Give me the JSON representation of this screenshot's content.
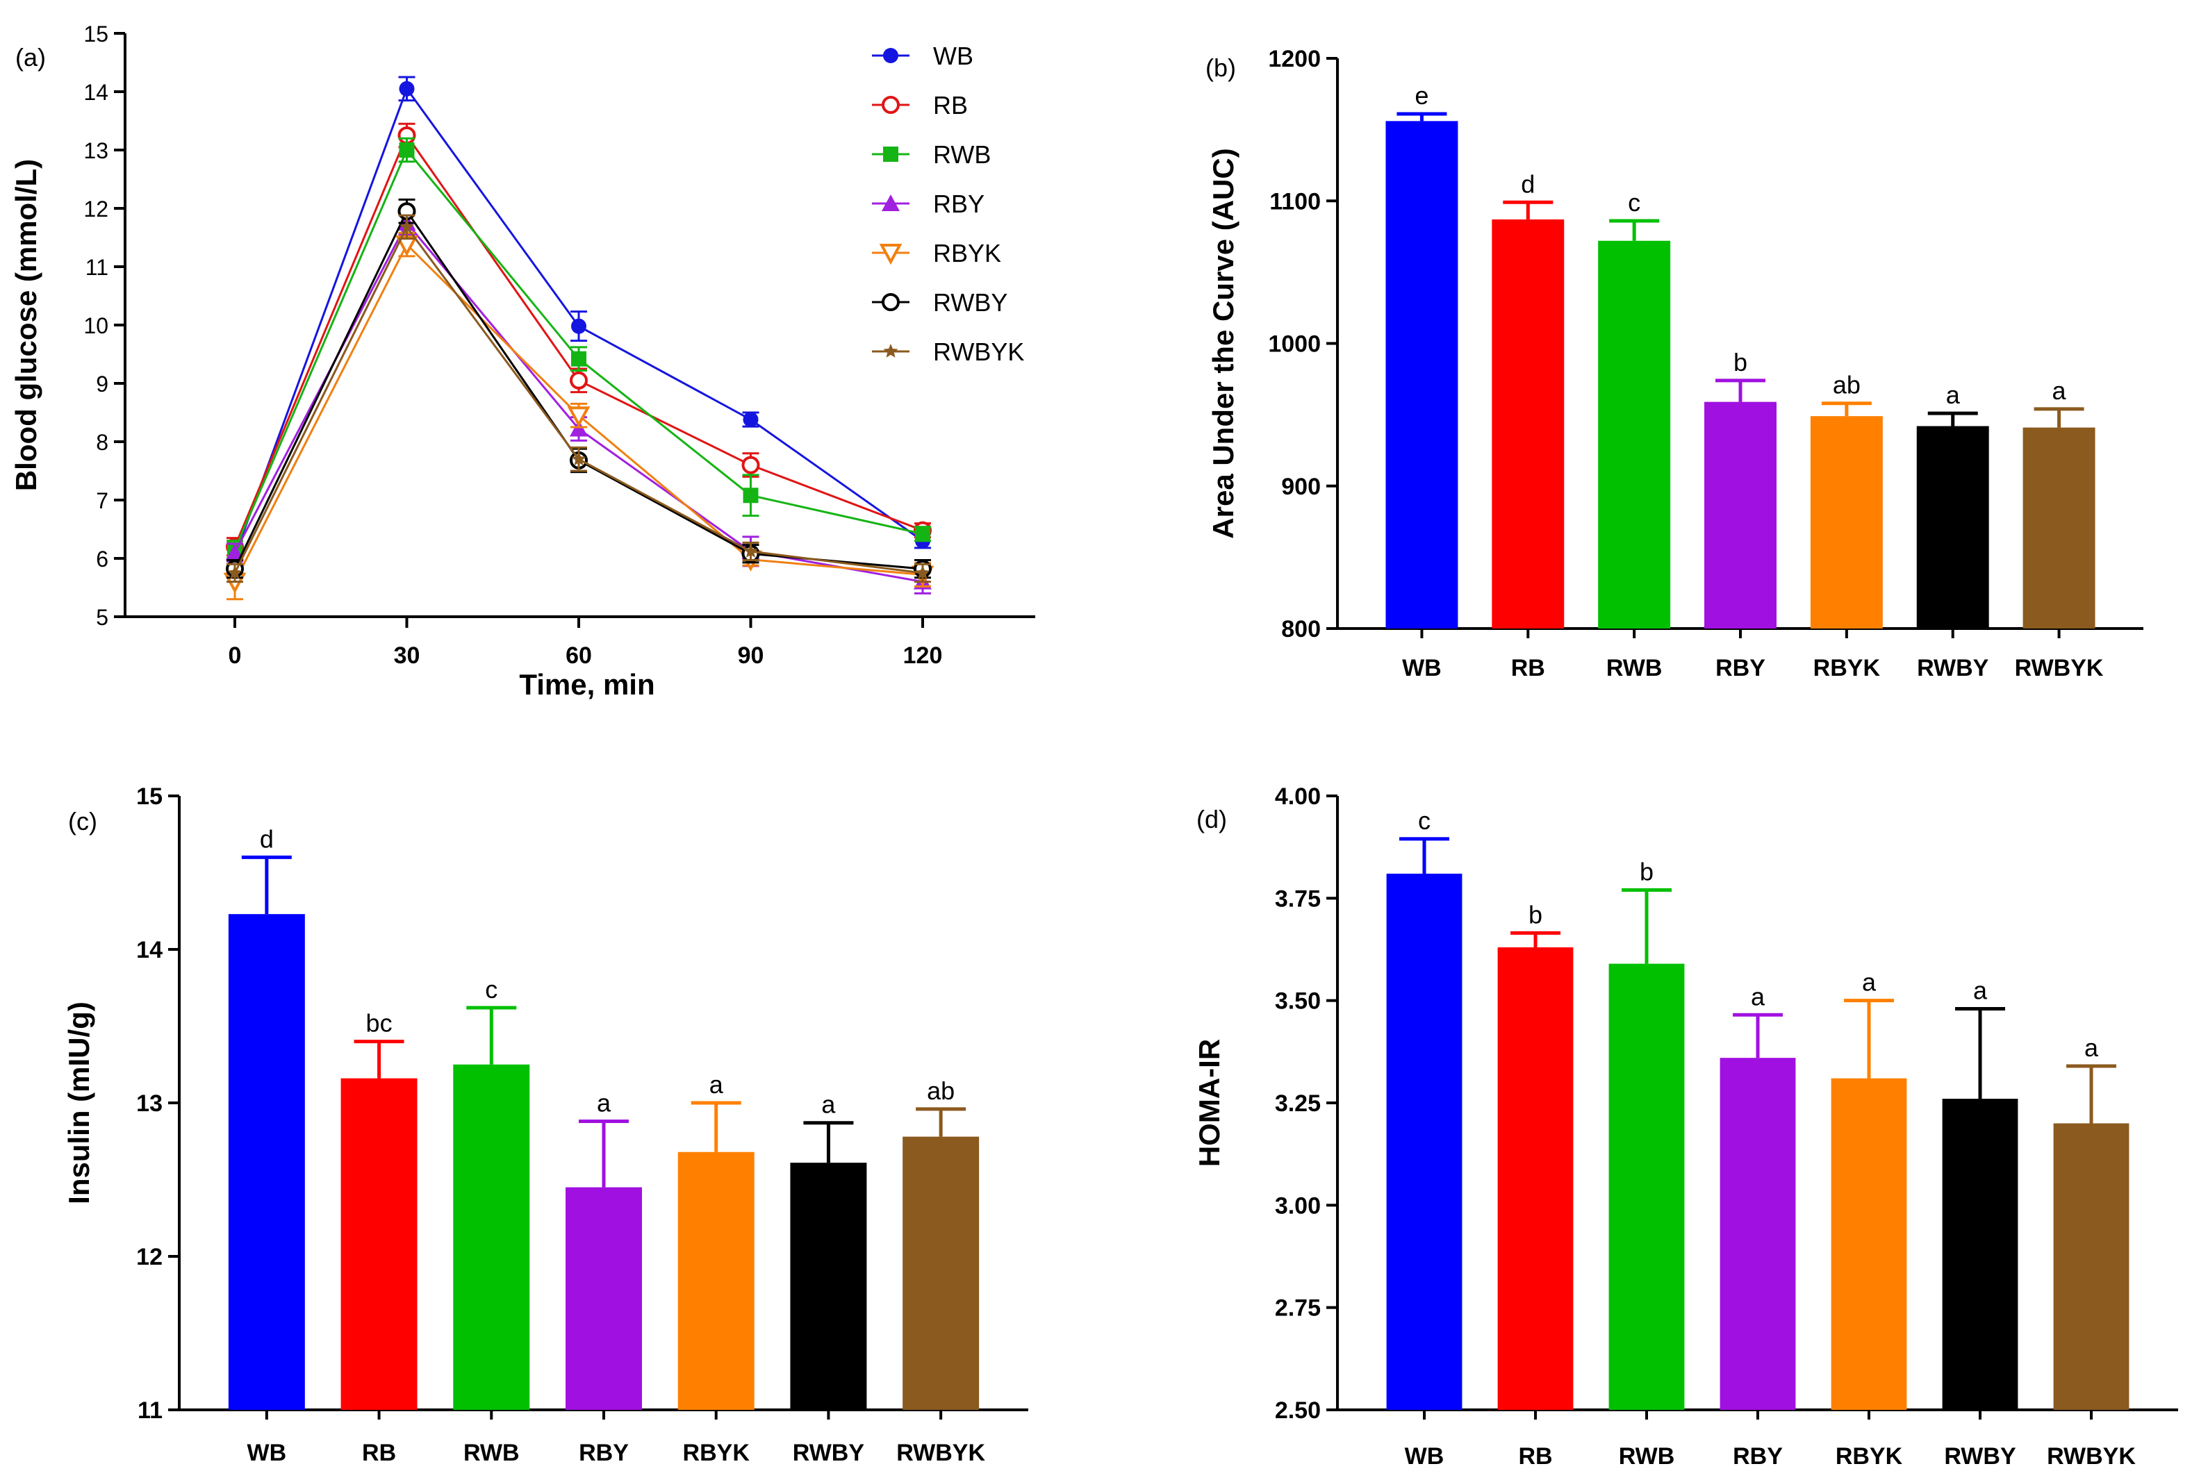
{
  "chart_data": [
    {
      "panel": "(a)",
      "type": "line",
      "xlabel": "Time, min",
      "ylabel": "Blood glucose (mmol/L)",
      "ylim": [
        5,
        15
      ],
      "yticks": [
        "5",
        "6",
        "7",
        "8",
        "9",
        "10",
        "11",
        "12",
        "13",
        "14",
        "15"
      ],
      "x": [
        0,
        30,
        60,
        90,
        120
      ],
      "xticks": [
        "0",
        "30",
        "60",
        "90",
        "120"
      ],
      "legend_position": "top-right",
      "series": [
        {
          "name": "WB",
          "color": "#1515e0",
          "marker": "circle-filled",
          "values": [
            6.05,
            14.05,
            9.98,
            8.38,
            6.3
          ],
          "errors": [
            0.15,
            0.2,
            0.25,
            0.12,
            0.12
          ]
        },
        {
          "name": "RB",
          "color": "#e01515",
          "marker": "circle-open",
          "values": [
            6.2,
            13.25,
            9.05,
            7.6,
            6.48
          ],
          "errors": [
            0.15,
            0.2,
            0.2,
            0.2,
            0.12
          ]
        },
        {
          "name": "RWB",
          "color": "#15b415",
          "marker": "square-filled",
          "values": [
            6.15,
            13.0,
            9.42,
            7.08,
            6.42
          ],
          "errors": [
            0.15,
            0.2,
            0.2,
            0.35,
            0.12
          ]
        },
        {
          "name": "RBY",
          "color": "#a020e0",
          "marker": "triangle-filled",
          "values": [
            6.1,
            11.75,
            8.22,
            6.12,
            5.6
          ],
          "errors": [
            0.15,
            0.2,
            0.2,
            0.25,
            0.2
          ]
        },
        {
          "name": "RBYK",
          "color": "#f08010",
          "marker": "triangle-open",
          "values": [
            5.6,
            11.38,
            8.45,
            5.98,
            5.72
          ],
          "errors": [
            0.3,
            0.2,
            0.2,
            0.1,
            0.2
          ]
        },
        {
          "name": "RWBY",
          "color": "#000000",
          "marker": "circle-open",
          "values": [
            5.82,
            11.95,
            7.68,
            6.08,
            5.82
          ],
          "errors": [
            0.15,
            0.2,
            0.2,
            0.15,
            0.15
          ]
        },
        {
          "name": "RWBYK",
          "color": "#8b5a1e",
          "marker": "star",
          "values": [
            5.75,
            11.68,
            7.7,
            6.12,
            5.75
          ],
          "errors": [
            0.15,
            0.2,
            0.2,
            0.15,
            0.15
          ]
        }
      ]
    },
    {
      "panel": "(b)",
      "type": "bar",
      "ylabel": "Area Under the Curve (AUC)",
      "ylim": [
        800,
        1200
      ],
      "yticks": [
        "800",
        "900",
        "1000",
        "1100",
        "1200"
      ],
      "categories": [
        "WB",
        "RB",
        "RWB",
        "RBY",
        "RBYK",
        "RWBY",
        "RWBYK"
      ],
      "colors": [
        "#0000ff",
        "#ff0000",
        "#00c000",
        "#a010e0",
        "#ff8000",
        "#000000",
        "#8b5a1e"
      ],
      "values": [
        1156,
        1087,
        1072,
        959,
        949,
        942,
        941
      ],
      "errors": [
        5,
        12,
        14,
        15,
        9,
        9,
        13
      ],
      "significance": [
        "e",
        "d",
        "c",
        "b",
        "ab",
        "a",
        "a"
      ]
    },
    {
      "panel": "(c)",
      "type": "bar",
      "ylabel": "Insulin (mIU/g)",
      "ylim": [
        11,
        15
      ],
      "yticks": [
        "11",
        "12",
        "13",
        "14",
        "15"
      ],
      "categories": [
        "WB",
        "RB",
        "RWB",
        "RBY",
        "RBYK",
        "RWBY",
        "RWBYK"
      ],
      "colors": [
        "#0000ff",
        "#ff0000",
        "#00c000",
        "#a010e0",
        "#ff8000",
        "#000000",
        "#8b5a1e"
      ],
      "values": [
        14.23,
        13.16,
        13.25,
        12.45,
        12.68,
        12.61,
        12.78
      ],
      "errors": [
        0.37,
        0.24,
        0.37,
        0.43,
        0.32,
        0.26,
        0.18
      ],
      "significance": [
        "d",
        "bc",
        "c",
        "a",
        "a",
        "a",
        "ab"
      ]
    },
    {
      "panel": "(d)",
      "type": "bar",
      "ylabel": "HOMA-IR",
      "ylim": [
        2.5,
        4.0
      ],
      "yticks": [
        "2.50",
        "2.75",
        "3.00",
        "3.25",
        "3.50",
        "3.75",
        "4.00"
      ],
      "categories": [
        "WB",
        "RB",
        "RWB",
        "RBY",
        "RBYK",
        "RWBY",
        "RWBYK"
      ],
      "colors": [
        "#0000ff",
        "#ff0000",
        "#00c000",
        "#a010e0",
        "#ff8000",
        "#000000",
        "#8b5a1e"
      ],
      "values": [
        3.81,
        3.63,
        3.59,
        3.36,
        3.31,
        3.26,
        3.2
      ],
      "errors": [
        0.085,
        0.035,
        0.18,
        0.105,
        0.19,
        0.22,
        0.14
      ],
      "significance": [
        "c",
        "b",
        "b",
        "a",
        "a",
        "a",
        "a"
      ]
    }
  ]
}
